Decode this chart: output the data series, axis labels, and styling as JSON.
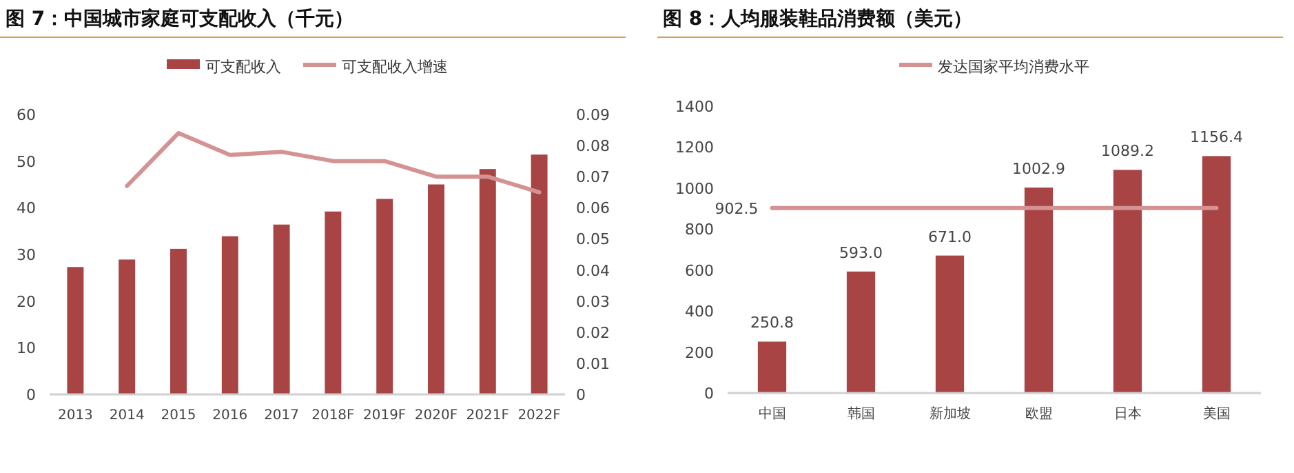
{
  "chart_data": [
    {
      "type": "bar",
      "title": "图 7：中国城市家庭可支配收入（千元）",
      "categories": [
        "2013",
        "2014",
        "2015",
        "2016",
        "2017",
        "2018F",
        "2019F",
        "2020F",
        "2021F",
        "2022F"
      ],
      "series": [
        {
          "name": "可支配收入",
          "color": "#a84444",
          "values": [
            27.3,
            28.9,
            31.2,
            33.9,
            36.4,
            39.2,
            41.9,
            45.0,
            48.3,
            51.4
          ]
        },
        {
          "name": "可支配收入增速",
          "type": "line",
          "axis": "y2",
          "color": "#d49292",
          "values": [
            null,
            0.067,
            0.084,
            0.077,
            0.078,
            0.075,
            0.075,
            0.07,
            0.07,
            0.065
          ]
        }
      ],
      "ylim": [
        0,
        60
      ],
      "yticks": [
        0,
        10,
        20,
        30,
        40,
        50,
        60
      ],
      "y2lim": [
        0,
        0.09
      ],
      "y2ticks": [
        0,
        0.01,
        0.02,
        0.03,
        0.04,
        0.05,
        0.06,
        0.07,
        0.08,
        0.09
      ],
      "legend": "top"
    },
    {
      "type": "bar",
      "title": "图 8：人均服装鞋品消费额（美元）",
      "categories": [
        "中国",
        "韩国",
        "新加坡",
        "欧盟",
        "日本",
        "美国"
      ],
      "series": [
        {
          "color": "#a84444",
          "values": [
            250.8,
            593.0,
            671.0,
            1002.9,
            1089.2,
            1156.4
          ],
          "value_labels": [
            "250.8",
            "593.0",
            "671.0",
            "1002.9",
            "1089.2",
            "1156.4"
          ]
        },
        {
          "name": "发达国家平均消费水平",
          "type": "line",
          "color": "#d49292",
          "values": [
            902.5,
            902.5,
            902.5,
            902.5,
            902.5,
            902.5
          ],
          "value_labels": [
            "902.5",
            null,
            null,
            null,
            null,
            null
          ]
        }
      ],
      "ylim": [
        0,
        1400
      ],
      "yticks": [
        0,
        200,
        400,
        600,
        800,
        1000,
        1200,
        1400
      ],
      "legend": "top"
    }
  ]
}
